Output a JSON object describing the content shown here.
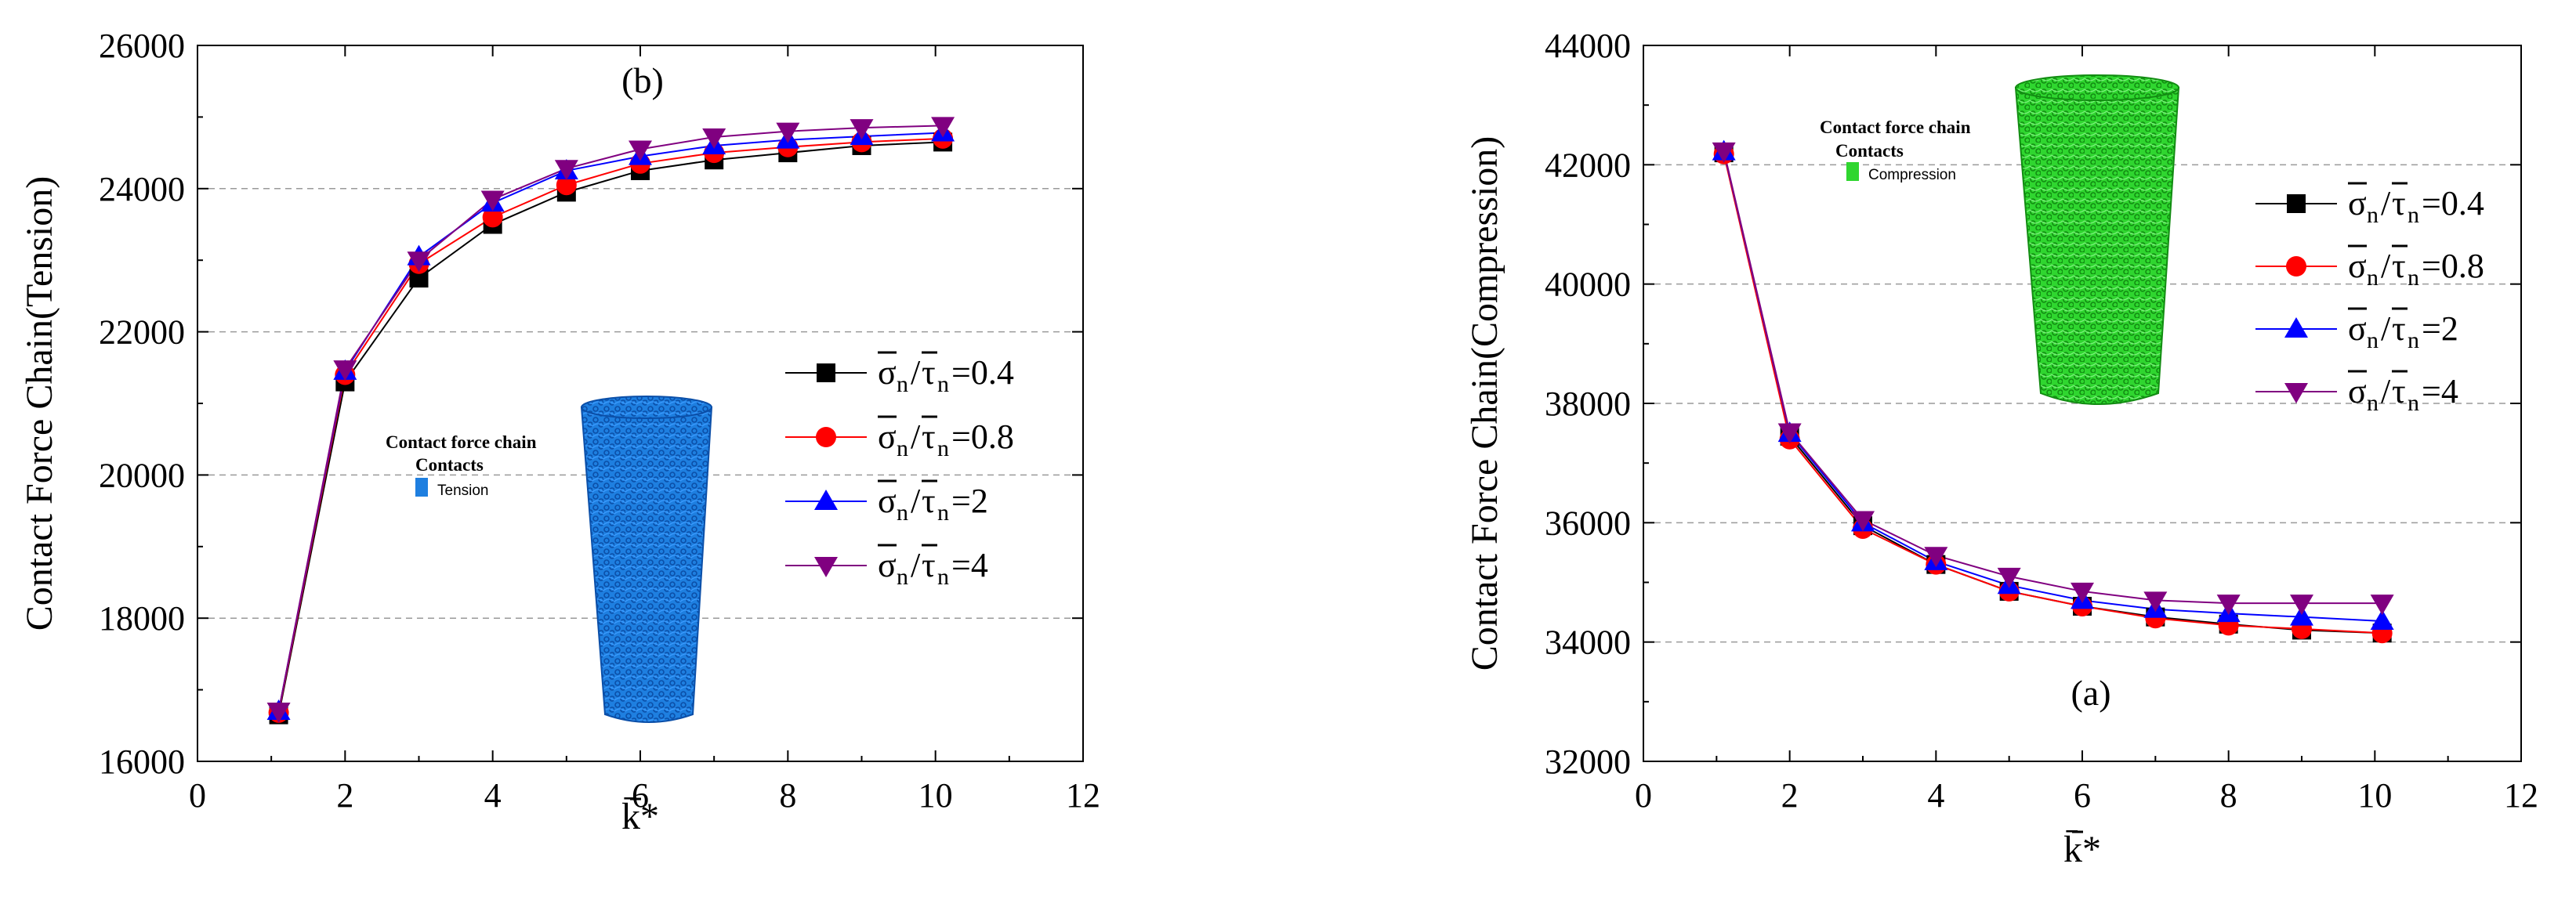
{
  "charts": [
    {
      "id": "left",
      "chart_data": {
        "type": "line",
        "panel_label": "(b)",
        "title": "",
        "ylabel": "Contact Force Chain(Tension)",
        "xlabel": "k̄*",
        "xlim": [
          0,
          12
        ],
        "ylim": [
          16000,
          26000
        ],
        "x_ticks": [
          0,
          2,
          4,
          6,
          8,
          10,
          12
        ],
        "y_ticks": [
          16000,
          18000,
          20000,
          22000,
          24000,
          26000
        ],
        "x_tick_labels": [
          "0",
          "2",
          "4",
          "6",
          "8",
          "10",
          "12"
        ],
        "y_tick_labels": [
          "16000",
          "18000",
          "20000",
          "22000",
          "24000",
          "26000"
        ],
        "grid": "horizontal dashed",
        "legend_position": "right-middle",
        "x": [
          1.1,
          2,
          3,
          4,
          5,
          6,
          7,
          8,
          9,
          10.1
        ],
        "series": [
          {
            "name": "σn/τn=0.4",
            "ratio": "0.4",
            "marker": "square",
            "color": "#000000",
            "values": [
              16650,
              21300,
              22750,
              23500,
              23950,
              24250,
              24400,
              24500,
              24600,
              24650
            ]
          },
          {
            "name": "σn/τn=0.8",
            "ratio": "0.8",
            "marker": "circle",
            "color": "#ff0000",
            "values": [
              16680,
              21400,
              22950,
              23600,
              24050,
              24350,
              24500,
              24580,
              24650,
              24700
            ]
          },
          {
            "name": "σn/τn=2",
            "ratio": "2",
            "marker": "triangle-up",
            "color": "#0000ff",
            "values": [
              16700,
              21450,
              23050,
              23800,
              24250,
              24450,
              24600,
              24680,
              24730,
              24780
            ]
          },
          {
            "name": "σn/τn=4",
            "ratio": "4",
            "marker": "triangle-down",
            "color": "#800080",
            "values": [
              16700,
              21480,
              23000,
              23850,
              24280,
              24550,
              24720,
              24800,
              24850,
              24880
            ]
          }
        ],
        "inset": {
          "title": "Contact force chain",
          "subtitle": "Contacts",
          "label": "Tension",
          "color": "#1e7fe0"
        }
      }
    },
    {
      "id": "right",
      "chart_data": {
        "type": "line",
        "panel_label": "(a)",
        "title": "",
        "ylabel": "Contact Force Chain(Compression)",
        "xlabel": "k̄*",
        "xlim": [
          0,
          12
        ],
        "ylim": [
          32000,
          44000
        ],
        "x_ticks": [
          0,
          2,
          4,
          6,
          8,
          10,
          12
        ],
        "y_ticks": [
          32000,
          34000,
          36000,
          38000,
          40000,
          42000,
          44000
        ],
        "x_tick_labels": [
          "0",
          "2",
          "4",
          "6",
          "8",
          "10",
          "12"
        ],
        "y_tick_labels": [
          "32000",
          "34000",
          "36000",
          "38000",
          "40000",
          "42000",
          "44000"
        ],
        "grid": "horizontal dashed",
        "legend_position": "top-right",
        "x": [
          1.1,
          2,
          3,
          4,
          5,
          6,
          7,
          8,
          9,
          10.1
        ],
        "series": [
          {
            "name": "σn/τn=0.4",
            "ratio": "0.4",
            "marker": "square",
            "color": "#000000",
            "values": [
              42200,
              37450,
              35950,
              35300,
              34850,
              34600,
              34420,
              34300,
              34200,
              34150
            ]
          },
          {
            "name": "σn/τn=0.8",
            "ratio": "0.8",
            "marker": "circle",
            "color": "#ff0000",
            "values": [
              42180,
              37400,
              35900,
              35300,
              34850,
              34600,
              34400,
              34280,
              34220,
              34150
            ]
          },
          {
            "name": "σn/τn=2",
            "ratio": "2",
            "marker": "triangle-up",
            "color": "#0000ff",
            "values": [
              42220,
              37500,
              36000,
              35350,
              34950,
              34700,
              34550,
              34480,
              34420,
              34350
            ]
          },
          {
            "name": "σn/τn=4",
            "ratio": "4",
            "marker": "triangle-down",
            "color": "#800080",
            "values": [
              42230,
              37520,
              36050,
              35450,
              35100,
              34850,
              34700,
              34650,
              34650,
              34650
            ]
          }
        ],
        "inset": {
          "title": "Contact force chain",
          "subtitle": "Contacts",
          "label": "Compression",
          "color": "#2fd62f"
        }
      }
    }
  ]
}
